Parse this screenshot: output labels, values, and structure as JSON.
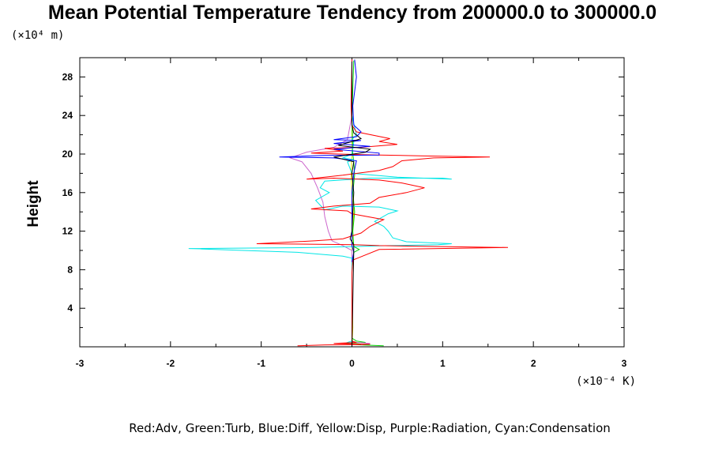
{
  "chart_data": {
    "type": "line",
    "title": "Mean Potential Temperature Tendency from 200000.0 to 300000.0",
    "ylabel": "Height",
    "xlabel": "",
    "y_scale_note": "(×10⁴ m)",
    "x_scale_note": "(×10⁻⁴ K)",
    "xlim": [
      -3,
      3
    ],
    "ylim": [
      0,
      30
    ],
    "x_ticks": [
      "-3",
      "-2",
      "-1",
      "0",
      "1",
      "2",
      "3"
    ],
    "y_ticks": [
      "4",
      "8",
      "12",
      "16",
      "20",
      "24",
      "28"
    ],
    "legend_text": "Red:Adv, Green:Turb, Blue:Diff, Yellow:Disp, Purple:Radiation, Cyan:Condensation",
    "colors": {
      "red": "#ff0000",
      "green": "#00d000",
      "blue": "#0000ff",
      "yellow": "#e8e800",
      "purple": "#cc66cc",
      "cyan": "#00e6e6",
      "black": "#000000"
    },
    "series": [
      {
        "color": "#e8e800",
        "points": [
          [
            0,
            0.2
          ],
          [
            0.01,
            2
          ],
          [
            0,
            5
          ],
          [
            0,
            8
          ],
          [
            0,
            10
          ],
          [
            0.01,
            12
          ],
          [
            0.02,
            14
          ],
          [
            0,
            16
          ],
          [
            -0.01,
            18
          ],
          [
            0,
            20
          ],
          [
            0,
            24
          ],
          [
            0,
            29.5
          ]
        ]
      },
      {
        "color": "#00d000",
        "points": [
          [
            0.35,
            0.1
          ],
          [
            0.1,
            0.2
          ],
          [
            -0.1,
            0.35
          ],
          [
            0.15,
            0.45
          ],
          [
            0.05,
            0.6
          ],
          [
            0,
            0.9
          ],
          [
            0,
            8
          ],
          [
            0.02,
            9.8
          ],
          [
            0.08,
            10.1
          ],
          [
            0.02,
            10.4
          ],
          [
            0.01,
            12
          ],
          [
            0.03,
            14
          ],
          [
            0.01,
            16
          ],
          [
            0.03,
            17.8
          ],
          [
            0.02,
            19.2
          ],
          [
            0.01,
            20
          ],
          [
            0,
            24
          ],
          [
            0.02,
            29.7
          ]
        ]
      },
      {
        "color": "#cc66cc",
        "points": [
          [
            0.1,
            0.2
          ],
          [
            0.2,
            0.35
          ],
          [
            0,
            0.5
          ],
          [
            0,
            10
          ],
          [
            -0.1,
            10.5
          ],
          [
            -0.22,
            11
          ],
          [
            -0.26,
            12
          ],
          [
            -0.3,
            13.5
          ],
          [
            -0.32,
            15
          ],
          [
            -0.38,
            16.5
          ],
          [
            -0.45,
            18
          ],
          [
            -0.55,
            19.2
          ],
          [
            -0.68,
            19.6
          ],
          [
            -0.5,
            20.2
          ],
          [
            -0.2,
            20.7
          ],
          [
            -0.05,
            21.5
          ],
          [
            0,
            24
          ],
          [
            0,
            29.8
          ]
        ]
      },
      {
        "color": "#00e6e6",
        "points": [
          [
            0,
            0.3
          ],
          [
            -0.05,
            0.45
          ],
          [
            0,
            0.6
          ],
          [
            0,
            9.2
          ],
          [
            -0.1,
            9.4
          ],
          [
            -0.6,
            9.8
          ],
          [
            -1.8,
            10.2
          ],
          [
            -0.4,
            10.3
          ],
          [
            0.01,
            10.4
          ],
          [
            0.4,
            10.5
          ],
          [
            0.95,
            10.6
          ],
          [
            1.1,
            10.7
          ],
          [
            0.6,
            10.9
          ],
          [
            0.45,
            11.3
          ],
          [
            0.4,
            12
          ],
          [
            0.35,
            12.5
          ],
          [
            0.25,
            13
          ],
          [
            0.4,
            13.8
          ],
          [
            0.5,
            14.1
          ],
          [
            0.3,
            14.5
          ],
          [
            -0.1,
            14.6
          ],
          [
            -0.3,
            14.2
          ],
          [
            -0.4,
            15.2
          ],
          [
            -0.25,
            16
          ],
          [
            -0.35,
            16.5
          ],
          [
            -0.3,
            17.2
          ],
          [
            0.2,
            17.5
          ],
          [
            1.0,
            17.5
          ],
          [
            1.1,
            17.4
          ],
          [
            0.5,
            17.6
          ],
          [
            0,
            18
          ],
          [
            -0.05,
            19.2
          ],
          [
            0.02,
            19.4
          ],
          [
            -0.1,
            19.6
          ],
          [
            0,
            20
          ],
          [
            0.02,
            21.2
          ],
          [
            0,
            21.5
          ],
          [
            0.05,
            22
          ],
          [
            0,
            24
          ],
          [
            0,
            29.5
          ]
        ]
      },
      {
        "color": "#ff0000",
        "points": [
          [
            -0.6,
            0.1
          ],
          [
            -0.3,
            0.2
          ],
          [
            0.2,
            0.25
          ],
          [
            -0.2,
            0.35
          ],
          [
            0.05,
            0.45
          ],
          [
            0,
            0.6
          ],
          [
            0,
            7.7
          ],
          [
            0.01,
            9
          ],
          [
            0.3,
            10.1
          ],
          [
            1.72,
            10.3
          ],
          [
            0.3,
            10.5
          ],
          [
            0.02,
            10.6
          ],
          [
            -1.05,
            10.7
          ],
          [
            -0.4,
            11
          ],
          [
            -0.1,
            11.2
          ],
          [
            0.1,
            11.8
          ],
          [
            0.2,
            12.5
          ],
          [
            0.35,
            13.2
          ],
          [
            0,
            13.8
          ],
          [
            -0.05,
            14.1
          ],
          [
            -0.45,
            14.3
          ],
          [
            -0.2,
            14.6
          ],
          [
            0.2,
            14.9
          ],
          [
            0.3,
            15.5
          ],
          [
            0.6,
            16
          ],
          [
            0.8,
            16.5
          ],
          [
            0.55,
            17
          ],
          [
            0.3,
            17.3
          ],
          [
            -0.2,
            17.5
          ],
          [
            -0.5,
            17.4
          ],
          [
            -0.1,
            17.8
          ],
          [
            0.3,
            18.3
          ],
          [
            0.45,
            18.7
          ],
          [
            0.55,
            19.3
          ],
          [
            0.9,
            19.6
          ],
          [
            1.52,
            19.7
          ],
          [
            0.8,
            19.8
          ],
          [
            0.3,
            19.9
          ],
          [
            -0.15,
            20
          ],
          [
            -0.45,
            20.1
          ],
          [
            -0.1,
            20.3
          ],
          [
            -0.3,
            20.6
          ],
          [
            0.1,
            20.7
          ],
          [
            0.5,
            21
          ],
          [
            0.3,
            21.3
          ],
          [
            0.42,
            21.6
          ],
          [
            0.05,
            22.3
          ],
          [
            0,
            23
          ],
          [
            -0.01,
            25
          ],
          [
            0,
            29.8
          ]
        ]
      },
      {
        "color": "#0000ff",
        "points": [
          [
            0,
            8.8
          ],
          [
            0.02,
            9.8
          ],
          [
            0,
            10.5
          ],
          [
            0,
            12
          ],
          [
            0,
            14
          ],
          [
            0,
            16
          ],
          [
            0.02,
            18
          ],
          [
            0.05,
            19.3
          ],
          [
            -0.2,
            19.6
          ],
          [
            -0.8,
            19.7
          ],
          [
            -0.3,
            19.85
          ],
          [
            0.3,
            19.9
          ],
          [
            0.3,
            20.1
          ],
          [
            -0.2,
            20.5
          ],
          [
            0.2,
            20.8
          ],
          [
            -0.2,
            21.1
          ],
          [
            0.1,
            21.4
          ],
          [
            -0.2,
            21.5
          ],
          [
            0.05,
            21.8
          ],
          [
            0.1,
            22.3
          ],
          [
            0.02,
            23
          ],
          [
            0.01,
            25
          ],
          [
            0.05,
            28
          ],
          [
            0.03,
            29.8
          ]
        ]
      },
      {
        "color": "#000000",
        "points": [
          [
            0,
            0
          ],
          [
            0.02,
            10
          ],
          [
            0.02,
            10.6
          ],
          [
            -0.02,
            11.2
          ],
          [
            0,
            12
          ],
          [
            0.01,
            14
          ],
          [
            0.02,
            16
          ],
          [
            0,
            18
          ],
          [
            0.02,
            19.2
          ],
          [
            -0.2,
            19.7
          ],
          [
            0.15,
            20.2
          ],
          [
            0.2,
            20.5
          ],
          [
            -0.15,
            20.9
          ],
          [
            0,
            21.3
          ],
          [
            0.1,
            21.6
          ],
          [
            0.02,
            22.2
          ],
          [
            0,
            23
          ],
          [
            0,
            25
          ],
          [
            0,
            29.6
          ]
        ]
      }
    ]
  }
}
